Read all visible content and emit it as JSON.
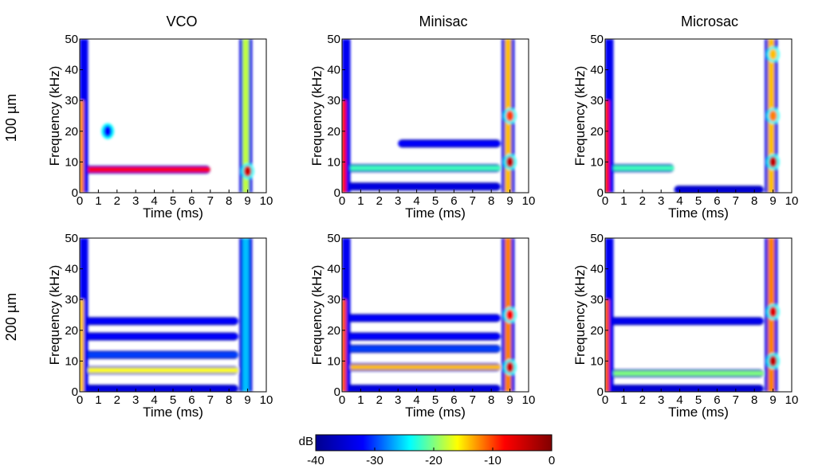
{
  "chart_data": {
    "type": "heatmap",
    "columns": [
      "VCO",
      "Minisac",
      "Microsac"
    ],
    "rows": [
      "100 µm",
      "200 µm"
    ],
    "xlabel": "Time (ms)",
    "ylabel": "Frequency (kHz)",
    "xlim": [
      0,
      10
    ],
    "ylim": [
      0,
      50
    ],
    "xticks": [
      "0",
      "1",
      "2",
      "3",
      "4",
      "5",
      "6",
      "7",
      "8",
      "9",
      "10"
    ],
    "yticks": [
      "0",
      "10",
      "20",
      "30",
      "40",
      "50"
    ],
    "colorbar": {
      "label": "dB",
      "min": -40,
      "max": 0,
      "ticks": [
        "-40",
        "-30",
        "-20",
        "-10",
        "0"
      ],
      "colormap": [
        "#00008f",
        "#0000ff",
        "#00ffff",
        "#ffff00",
        "#ff0000",
        "#800000"
      ]
    },
    "panels": [
      {
        "column": "VCO",
        "row": "100 µm",
        "hbands": [
          {
            "f": 7.5,
            "t0": 0.0,
            "t1": 7.0,
            "level": -8
          }
        ],
        "onset_level": -12,
        "offset": {
          "t": 8.9,
          "level": -18
        },
        "blobs": [
          {
            "t": 9.0,
            "f": 7.0,
            "level": -5
          },
          {
            "t": 1.5,
            "f": 20.0,
            "level": -32
          }
        ]
      },
      {
        "column": "Minisac",
        "row": "100 µm",
        "hbands": [
          {
            "f": 8.0,
            "t0": 0.0,
            "t1": 8.5,
            "level": -22
          },
          {
            "f": 16.0,
            "t0": 3.0,
            "t1": 8.5,
            "level": -32
          },
          {
            "f": 2.0,
            "t0": 0.0,
            "t1": 8.5,
            "level": -34
          }
        ],
        "onset_level": -8,
        "offset": {
          "t": 8.9,
          "level": -14
        },
        "blobs": [
          {
            "t": 9.0,
            "f": 10.0,
            "level": -4
          },
          {
            "t": 9.0,
            "f": 25.0,
            "level": -10
          }
        ]
      },
      {
        "column": "Microsac",
        "row": "100 µm",
        "hbands": [
          {
            "f": 8.0,
            "t0": 0.0,
            "t1": 3.7,
            "level": -22
          },
          {
            "f": 1.0,
            "t0": 3.7,
            "t1": 8.5,
            "level": -35
          }
        ],
        "onset_level": -8,
        "offset": {
          "t": 8.9,
          "level": -14
        },
        "blobs": [
          {
            "t": 9.0,
            "f": 10.0,
            "level": -4
          },
          {
            "t": 9.0,
            "f": 25.0,
            "level": -12
          },
          {
            "t": 9.0,
            "f": 45.0,
            "level": -14
          }
        ]
      },
      {
        "column": "VCO",
        "row": "200 µm",
        "hbands": [
          {
            "f": 7.0,
            "t0": 0.0,
            "t1": 8.5,
            "level": -16
          },
          {
            "f": 12.0,
            "t0": 0.0,
            "t1": 8.5,
            "level": -30
          },
          {
            "f": 18.0,
            "t0": 0.0,
            "t1": 8.5,
            "level": -32
          },
          {
            "f": 23.0,
            "t0": 0.0,
            "t1": 8.5,
            "level": -32
          },
          {
            "f": 1.0,
            "t0": 0.0,
            "t1": 8.5,
            "level": -34
          }
        ],
        "onset_level": -14,
        "offset": {
          "t": 8.9,
          "level": -26
        },
        "blobs": []
      },
      {
        "column": "Minisac",
        "row": "200 µm",
        "hbands": [
          {
            "f": 8.0,
            "t0": 0.0,
            "t1": 8.5,
            "level": -14
          },
          {
            "f": 14.0,
            "t0": 0.0,
            "t1": 8.5,
            "level": -30
          },
          {
            "f": 18.0,
            "t0": 0.0,
            "t1": 8.5,
            "level": -32
          },
          {
            "f": 24.0,
            "t0": 0.0,
            "t1": 8.5,
            "level": -32
          },
          {
            "f": 1.0,
            "t0": 0.0,
            "t1": 8.5,
            "level": -34
          }
        ],
        "onset_level": -10,
        "offset": {
          "t": 8.9,
          "level": -12
        },
        "blobs": [
          {
            "t": 9.0,
            "f": 8.0,
            "level": -5
          },
          {
            "t": 9.0,
            "f": 25.0,
            "level": -8
          }
        ]
      },
      {
        "column": "Microsac",
        "row": "200 µm",
        "hbands": [
          {
            "f": 6.0,
            "t0": 0.0,
            "t1": 8.5,
            "level": -20
          },
          {
            "f": 23.0,
            "t0": 0.0,
            "t1": 8.5,
            "level": -33
          },
          {
            "f": 1.0,
            "t0": 0.0,
            "t1": 8.5,
            "level": -35
          }
        ],
        "onset_level": -10,
        "offset": {
          "t": 8.9,
          "level": -12
        },
        "blobs": [
          {
            "t": 9.0,
            "f": 10.0,
            "level": -4
          },
          {
            "t": 9.0,
            "f": 26.0,
            "level": -6
          }
        ]
      }
    ]
  }
}
